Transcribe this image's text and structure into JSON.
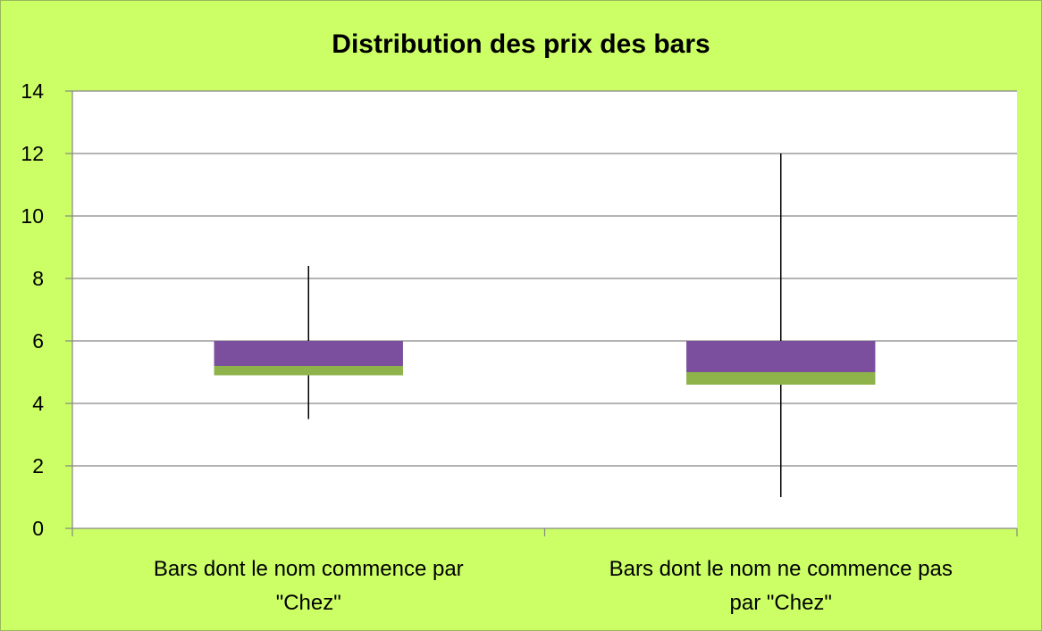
{
  "colors": {
    "background": "#ccff66",
    "plot_area": "#ffffff",
    "gridline": "#868686",
    "upper_box": "#7b4f9e",
    "lower_box": "#8db34a",
    "whisker": "#000000"
  },
  "chart_data": {
    "type": "boxplot",
    "title": "Distribution des prix des bars",
    "xlabel": "",
    "ylabel": "",
    "ylim": [
      0,
      14
    ],
    "yticks": [
      0,
      2,
      4,
      6,
      8,
      10,
      12,
      14
    ],
    "grid": true,
    "legend": "none",
    "categories": [
      {
        "label_lines": [
          "Bars dont le nom commence par",
          "\"Chez\""
        ],
        "min": 3.5,
        "q1": 4.9,
        "median": 5.2,
        "q3": 6.0,
        "max": 8.4
      },
      {
        "label_lines": [
          "Bars dont le nom ne commence pas",
          "par \"Chez\""
        ],
        "min": 1.0,
        "q1": 4.6,
        "median": 5.0,
        "q3": 6.0,
        "max": 12.0
      }
    ]
  }
}
